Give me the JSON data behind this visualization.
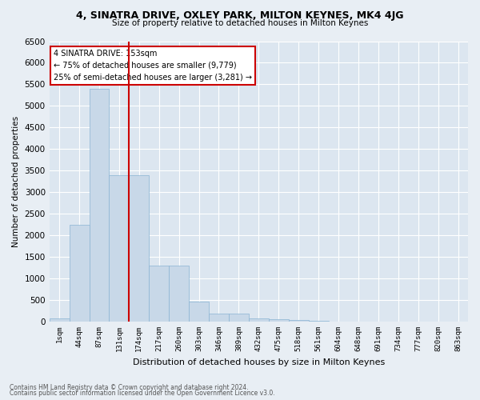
{
  "title1": "4, SINATRA DRIVE, OXLEY PARK, MILTON KEYNES, MK4 4JG",
  "title2": "Size of property relative to detached houses in Milton Keynes",
  "xlabel": "Distribution of detached houses by size in Milton Keynes",
  "ylabel": "Number of detached properties",
  "bin_labels": [
    "1sqm",
    "44sqm",
    "87sqm",
    "131sqm",
    "174sqm",
    "217sqm",
    "260sqm",
    "303sqm",
    "346sqm",
    "389sqm",
    "432sqm",
    "475sqm",
    "518sqm",
    "561sqm",
    "604sqm",
    "648sqm",
    "691sqm",
    "734sqm",
    "777sqm",
    "820sqm",
    "863sqm"
  ],
  "bar_values": [
    70,
    2250,
    5400,
    3400,
    3400,
    1290,
    1290,
    470,
    195,
    195,
    75,
    55,
    30,
    18,
    8,
    8,
    4,
    4,
    4,
    4,
    4
  ],
  "bar_color": "#c8d8e8",
  "bar_edge_color": "#8ab4d4",
  "vline_position": 3.5,
  "vline_color": "#cc0000",
  "annotation_title": "4 SINATRA DRIVE: 153sqm",
  "annotation_line1": "← 75% of detached houses are smaller (9,779)",
  "annotation_line2": "25% of semi-detached houses are larger (3,281) →",
  "annotation_box_color": "#ffffff",
  "annotation_box_edge": "#cc0000",
  "ylim": [
    0,
    6500
  ],
  "yticks": [
    0,
    500,
    1000,
    1500,
    2000,
    2500,
    3000,
    3500,
    4000,
    4500,
    5000,
    5500,
    6000,
    6500
  ],
  "bg_color": "#e8eef4",
  "plot_bg_color": "#dce6f0",
  "footer1": "Contains HM Land Registry data © Crown copyright and database right 2024.",
  "footer2": "Contains public sector information licensed under the Open Government Licence v3.0."
}
